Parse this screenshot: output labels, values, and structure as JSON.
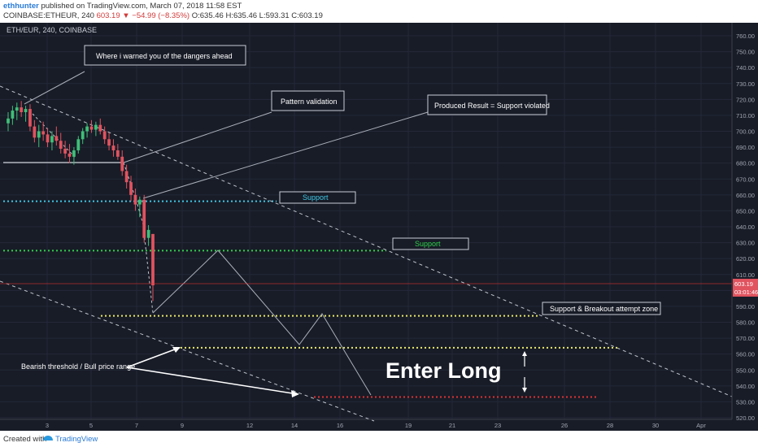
{
  "header": {
    "author": "ethhunter",
    "published_text": "published on TradingView.com, March 07, 2018 11:58 EST",
    "symbol_line_prefix": "COINBASE:ETHEUR, 240",
    "last_price": "603.19",
    "change": "▼ −54.99 (−8.35%)",
    "ohlc_o": "O:635.46",
    "ohlc_h": "H:635.46",
    "ohlc_l": "L:593.31",
    "ohlc_c": "C:603.19"
  },
  "chart_label": "ETH/EUR, 240, COINBASE",
  "price_tag": {
    "price": "603.19",
    "countdown": "03:01:46"
  },
  "annotations": {
    "warned": "Where i warned you of the dangers ahead",
    "pattern": "Pattern validation",
    "produced": "Produced Result = Support violated",
    "support_cyan": "Support",
    "support_green": "Support",
    "breakout": "Support & Breakout attempt zone",
    "bearish": "Bearish threshold / Bull price range",
    "enter_long": "Enter Long"
  },
  "footer": {
    "created": "Created with",
    "brand": "TradingView"
  },
  "colors": {
    "bg": "#181c27",
    "down": "#e0535f",
    "up": "#3fbf78",
    "cyan": "#3ec8e6",
    "green": "#2fd04a",
    "yellow": "#e8e86a",
    "red": "#e03232"
  },
  "chart_data": {
    "type": "candlestick",
    "yaxis": {
      "min": 520,
      "max": 760,
      "ticks": [
        520,
        530,
        540,
        550,
        560,
        570,
        580,
        590,
        600,
        610,
        620,
        630,
        640,
        650,
        660,
        670,
        680,
        690,
        700,
        710,
        720,
        730,
        740,
        750,
        760
      ]
    },
    "xaxis": {
      "ticks": [
        "3",
        "5",
        "7",
        "9",
        "12",
        "14",
        "16",
        "19",
        "21",
        "23",
        "26",
        "28",
        "30",
        "Apr"
      ]
    },
    "last_price": 603.19,
    "levels": [
      {
        "name": "Support",
        "price": 656,
        "color": "cyan"
      },
      {
        "name": "Support",
        "price": 625,
        "color": "green"
      },
      {
        "name": "Support & Breakout attempt zone",
        "price": 584,
        "color": "yellow"
      },
      {
        "name": "Bearish threshold / Bull price range",
        "price": 564,
        "color": "yellow"
      },
      {
        "name": "Enter Long",
        "price": 533,
        "color": "red"
      }
    ],
    "candles": [
      {
        "o": 705,
        "h": 712,
        "l": 700,
        "c": 708
      },
      {
        "o": 708,
        "h": 716,
        "l": 704,
        "c": 713
      },
      {
        "o": 713,
        "h": 718,
        "l": 707,
        "c": 715
      },
      {
        "o": 715,
        "h": 719,
        "l": 709,
        "c": 712
      },
      {
        "o": 712,
        "h": 716,
        "l": 706,
        "c": 714
      },
      {
        "o": 714,
        "h": 717,
        "l": 700,
        "c": 703
      },
      {
        "o": 703,
        "h": 707,
        "l": 693,
        "c": 696
      },
      {
        "o": 696,
        "h": 704,
        "l": 690,
        "c": 700
      },
      {
        "o": 700,
        "h": 706,
        "l": 694,
        "c": 698
      },
      {
        "o": 698,
        "h": 702,
        "l": 690,
        "c": 693
      },
      {
        "o": 693,
        "h": 700,
        "l": 688,
        "c": 697
      },
      {
        "o": 697,
        "h": 703,
        "l": 691,
        "c": 694
      },
      {
        "o": 694,
        "h": 699,
        "l": 686,
        "c": 689
      },
      {
        "o": 689,
        "h": 694,
        "l": 683,
        "c": 686
      },
      {
        "o": 686,
        "h": 692,
        "l": 680,
        "c": 684
      },
      {
        "o": 684,
        "h": 690,
        "l": 679,
        "c": 688
      },
      {
        "o": 688,
        "h": 697,
        "l": 686,
        "c": 695
      },
      {
        "o": 695,
        "h": 702,
        "l": 692,
        "c": 700
      },
      {
        "o": 700,
        "h": 705,
        "l": 696,
        "c": 703
      },
      {
        "o": 703,
        "h": 707,
        "l": 699,
        "c": 701
      },
      {
        "o": 701,
        "h": 706,
        "l": 697,
        "c": 704
      },
      {
        "o": 704,
        "h": 708,
        "l": 698,
        "c": 700
      },
      {
        "o": 700,
        "h": 703,
        "l": 692,
        "c": 695
      },
      {
        "o": 695,
        "h": 699,
        "l": 688,
        "c": 691
      },
      {
        "o": 691,
        "h": 695,
        "l": 684,
        "c": 688
      },
      {
        "o": 688,
        "h": 692,
        "l": 682,
        "c": 684
      },
      {
        "o": 684,
        "h": 688,
        "l": 672,
        "c": 675
      },
      {
        "o": 675,
        "h": 679,
        "l": 664,
        "c": 668
      },
      {
        "o": 668,
        "h": 672,
        "l": 656,
        "c": 660
      },
      {
        "o": 660,
        "h": 664,
        "l": 650,
        "c": 654
      },
      {
        "o": 654,
        "h": 659,
        "l": 646,
        "c": 657
      },
      {
        "o": 657,
        "h": 660,
        "l": 630,
        "c": 633
      },
      {
        "o": 633,
        "h": 641,
        "l": 628,
        "c": 638
      },
      {
        "o": 635.46,
        "h": 635.46,
        "l": 593.31,
        "c": 603.19
      }
    ]
  }
}
